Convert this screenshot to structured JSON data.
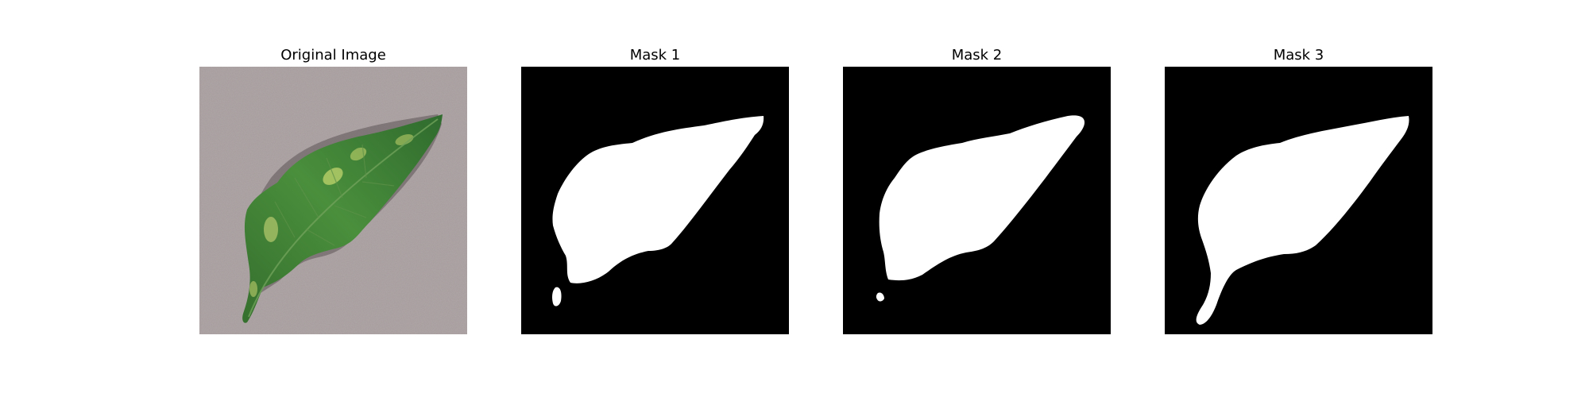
{
  "figure": {
    "panels": [
      {
        "title": "Original Image",
        "kind": "photo-leaf"
      },
      {
        "title": "Mask 1",
        "kind": "mask-1"
      },
      {
        "title": "Mask 2",
        "kind": "mask-2"
      },
      {
        "title": "Mask 3",
        "kind": "mask-3"
      }
    ],
    "colors": {
      "background": "#ffffff",
      "mask_bg": "#000000",
      "mask_fg": "#ffffff",
      "paper": "#a59b9c",
      "leaf": "#3f8a3a",
      "leaf_dark": "#2c6a2c",
      "leaf_light": "#b9cf6a"
    }
  }
}
